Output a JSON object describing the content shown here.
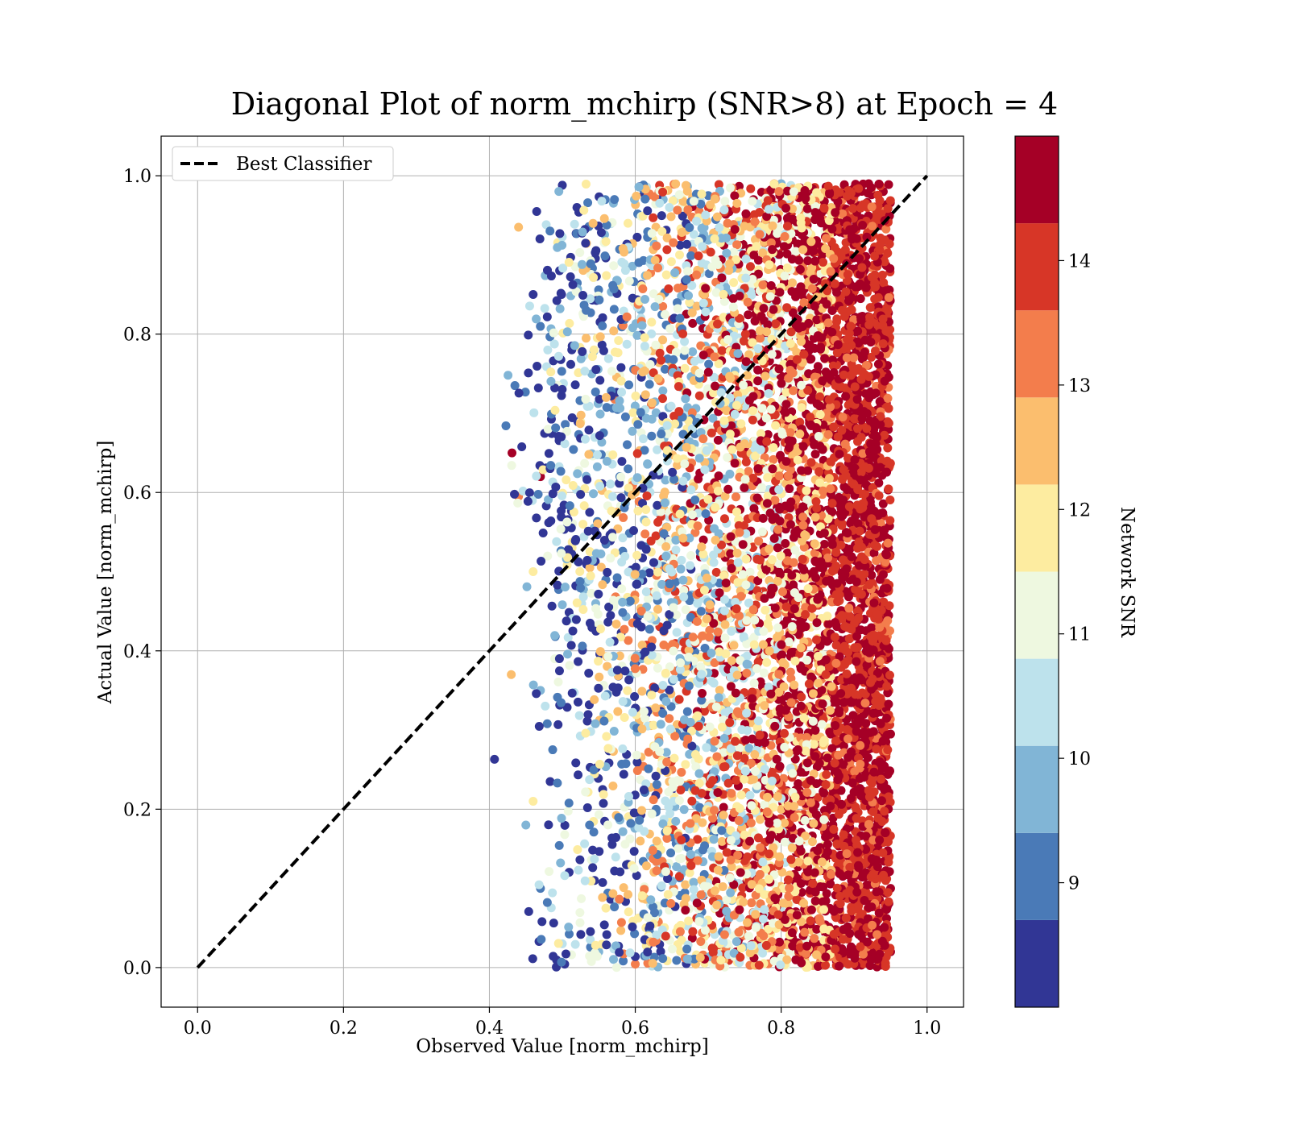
{
  "chart_data": {
    "type": "scatter",
    "title": "Diagonal Plot of norm_mchirp (SNR>8) at Epoch = 4",
    "xlabel": "Observed Value [norm_mchirp]",
    "ylabel": "Actual Value [norm_mchirp]",
    "xlim": [
      -0.05,
      1.05
    ],
    "ylim": [
      -0.05,
      1.05
    ],
    "xticks": [
      "0.0",
      "0.2",
      "0.4",
      "0.6",
      "0.8",
      "1.0"
    ],
    "yticks": [
      "0.0",
      "0.2",
      "0.4",
      "0.6",
      "0.8",
      "1.0"
    ],
    "grid": true,
    "legend": {
      "position": "top-left",
      "entries": [
        "Best Classifier"
      ]
    },
    "reference_line": {
      "name": "Best Classifier",
      "style": "dashed",
      "color": "#000000",
      "x": [
        0.0,
        1.0
      ],
      "y": [
        0.0,
        1.0
      ]
    },
    "colorbar": {
      "label": "Network SNR",
      "range": [
        8,
        15
      ],
      "ticks": [
        "9",
        "10",
        "11",
        "12",
        "13",
        "14"
      ],
      "colors": [
        "#313695",
        "#4a7ab7",
        "#81b5d6",
        "#bde2ec",
        "#eef8e0",
        "#fdeca0",
        "#fbbe6e",
        "#f37d4c",
        "#d73627",
        "#a50026"
      ]
    },
    "series": [
      {
        "color_by": "Network SNR",
        "points": [
          [
            0.407,
            0.263,
            8.3
          ],
          [
            0.44,
            0.935,
            12.8
          ],
          [
            0.435,
            0.735,
            9.0
          ],
          [
            0.431,
            0.65,
            14.4
          ],
          [
            0.44,
            0.595,
            13.2
          ],
          [
            0.43,
            0.37,
            12.5
          ],
          [
            0.45,
            0.18,
            10.1
          ],
          [
            0.5,
            0.988,
            8.5
          ],
          [
            0.52,
            0.96,
            8.6
          ],
          [
            0.59,
            0.94,
            11.5
          ],
          [
            0.7,
            0.975,
            9.2
          ],
          [
            0.8,
            0.99,
            9.5
          ],
          [
            0.92,
            0.99,
            14.6
          ],
          [
            0.94,
            0.98,
            14.8
          ],
          [
            0.9,
            0.96,
            13.6
          ],
          [
            0.88,
            0.95,
            12.4
          ],
          [
            0.86,
            0.93,
            11.2
          ],
          [
            0.84,
            0.91,
            10.6
          ],
          [
            0.82,
            0.88,
            13.1
          ],
          [
            0.46,
            0.85,
            8.7
          ],
          [
            0.48,
            0.78,
            10.4
          ],
          [
            0.47,
            0.62,
            14.3
          ],
          [
            0.46,
            0.5,
            12.2
          ],
          [
            0.47,
            0.35,
            9.6
          ],
          [
            0.46,
            0.21,
            11.6
          ],
          [
            0.47,
            0.1,
            8.9
          ],
          [
            0.5,
            0.03,
            10.2
          ],
          [
            0.55,
            0.02,
            9.4
          ],
          [
            0.67,
            0.005,
            8.4
          ],
          [
            0.765,
            0.003,
            9.1
          ],
          [
            0.81,
            0.02,
            11.3
          ],
          [
            0.86,
            0.01,
            12.6
          ],
          [
            0.91,
            0.003,
            14.9
          ],
          [
            0.95,
            0.02,
            14.7
          ],
          [
            0.95,
            0.1,
            14.5
          ],
          [
            0.94,
            0.5,
            14.9
          ],
          [
            0.945,
            0.75,
            14.6
          ],
          [
            0.6,
            0.6,
            12.3
          ],
          [
            0.7,
            0.4,
            10.9
          ],
          [
            0.65,
            0.25,
            13.4
          ]
        ]
      }
    ]
  }
}
